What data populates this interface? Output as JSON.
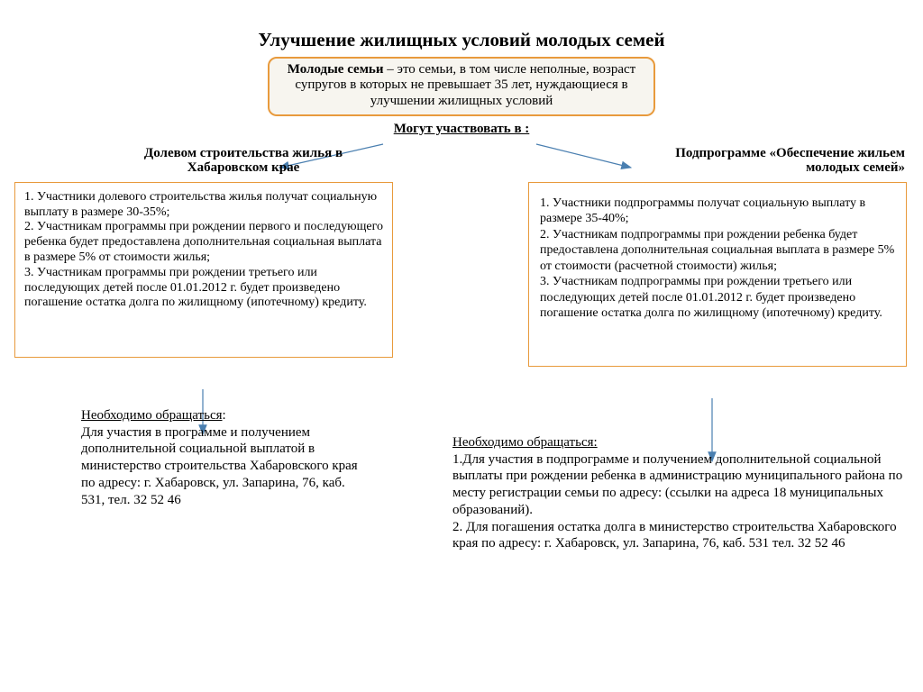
{
  "colors": {
    "border": "#e89a3c",
    "arrow": "#4a7fb0",
    "text": "#000000",
    "bg": "#ffffff",
    "defbg": "#f7f5ef"
  },
  "title": "Улучшение жилищных условий молодых семей",
  "definition_bold": "Молодые семьи",
  "definition_rest": " – это семьи, в том числе неполные, возраст супругов в которых  не превышает 35 лет, нуждающиеся в улучшении жилищных условий",
  "can_participate": "Могут участвовать  в :",
  "left": {
    "label": "Долевом строительства жилья в Хабаровском крае",
    "box": "1.   Участники долевого строительства жилья получат социальную выплату в размере 30-35%;\n2. Участникам программы при рождении первого  и последующего ребенка будет предоставлена  дополнительная социальная выплата в размере 5% от стоимости жилья;\n3. Участникам программы при рождении третьего или последующих детей после 01.01.2012 г. будет произведено погашение остатка долга по жилищному (ипотечному) кредиту.",
    "contact_head": "Необходимо обращаться",
    "contact_body": ":\nДля участия в программе  и получением дополнительной социальной выплатой в министерство строительства Хабаровского края по адресу: г. Хабаровск, ул. Запарина, 76, каб. 531, тел. 32 52 46"
  },
  "right": {
    "label": "Подпрограмме «Обеспечение жильем молодых семей»",
    "box": "1.   Участники подпрограммы получат социальную выплату в размере 35-40%;\n2. Участникам подпрограммы при рождении ребенка будет предоставлена дополнительная социальная выплата в размере 5% от стоимости (расчетной стоимости) жилья;\n3. Участникам подпрограммы при рождении третьего или последующих детей после 01.01.2012 г. будет произведено погашение остатка долга по жилищному (ипотечному) кредиту.",
    "contact_head": "Необходимо обращаться:",
    "contact_body": "\n1.Для участия в подпрограмме и  получением дополнительной социальной выплаты при рождении ребенка в администрацию муниципального района по месту регистрации семьи по адресу: (ссылки  на адреса 18 муниципальных образований).\n 2. Для погашения остатка долга в министерство строительства Хабаровского края по адресу: г. Хабаровск, ул. Запарина, 76, каб. 531 тел. 32 52 46"
  },
  "arrows": {
    "color": "#4a7fb0",
    "stroke_width": 1.2
  }
}
